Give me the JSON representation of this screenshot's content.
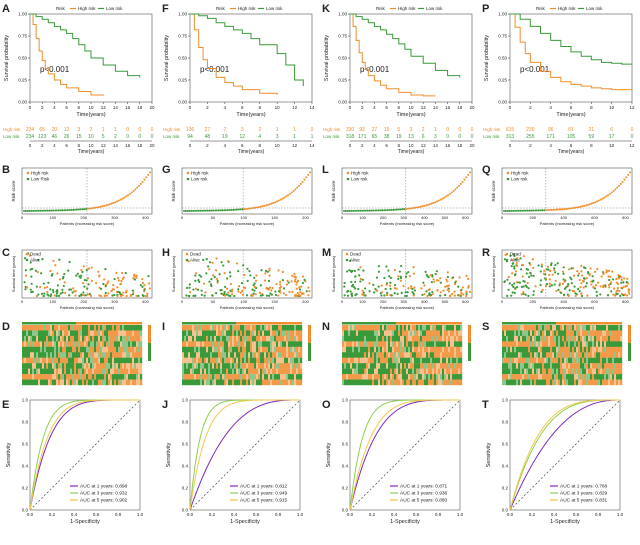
{
  "colors": {
    "high": "#f28e2b",
    "low": "#3a9a3a",
    "dead": "#f28e2b",
    "alive": "#3a9a3a",
    "auc1": "#7b2cbf",
    "auc3": "#8fd14f",
    "auc5": "#f2c94c"
  },
  "columns": [
    {
      "letters": [
        "A",
        "B",
        "C",
        "D",
        "E"
      ],
      "km": {
        "title_legend": [
          "Risk",
          "High risk",
          "Low risk"
        ],
        "pvalue": "p<0.001",
        "ylabel": "Survival probability",
        "xlabel": "Time(years)",
        "xticks": [
          "0",
          "2",
          "4",
          "6",
          "8",
          "10",
          "12",
          "14",
          "16",
          "18",
          "20"
        ],
        "xmax": 20,
        "yticks": [
          "0.00",
          "0.25",
          "0.50",
          "0.75",
          "1.00"
        ],
        "high": {
          "t": [
            0,
            0.5,
            1,
            1.5,
            2,
            2.5,
            3,
            4,
            5,
            6,
            8,
            10,
            12
          ],
          "s": [
            1,
            0.88,
            0.72,
            0.58,
            0.47,
            0.38,
            0.32,
            0.25,
            0.2,
            0.16,
            0.12,
            0.08,
            0.07
          ]
        },
        "low": {
          "t": [
            0,
            1,
            2,
            3,
            4,
            5,
            6,
            7,
            8,
            9,
            10,
            12,
            14,
            16,
            18
          ],
          "s": [
            1,
            0.97,
            0.94,
            0.9,
            0.86,
            0.82,
            0.78,
            0.72,
            0.65,
            0.58,
            0.5,
            0.42,
            0.35,
            0.3,
            0.28
          ]
        }
      },
      "table": {
        "row_labels": [
          "High risk",
          "Low risk"
        ],
        "xlabel": "Time(years)",
        "high": [
          "234",
          "65",
          "20",
          "12",
          "3",
          "2",
          "1",
          "1",
          "0",
          "0",
          "0"
        ],
        "low": [
          "234",
          "123",
          "46",
          "26",
          "15",
          "10",
          "5",
          "2",
          "0",
          "0",
          "0"
        ]
      },
      "risk": {
        "ylabel": "Risk score",
        "xlabel": "Patients (increasing risk score)",
        "legend": [
          "High risk",
          "Low Risk"
        ],
        "xticks": [
          "0",
          "100",
          "200",
          "300",
          "400"
        ],
        "n": 468,
        "cut": 234
      },
      "surv": {
        "ylabel": "Survival time (years)",
        "xlabel": "Patients (increasing risk score)",
        "legend": [
          "Dead",
          "Alive"
        ],
        "xticks": [
          "0",
          "100",
          "200",
          "300",
          "400"
        ],
        "n": 468
      },
      "roc": {
        "ylabel": "Sensitivity",
        "xlabel": "1-Specificity",
        "labels": [
          "AUC at 1 years: 0.898",
          "AUC at 3 years: 0.932",
          "AUC at 5 years: 0.902"
        ]
      }
    },
    {
      "letters": [
        "F",
        "G",
        "H",
        "I",
        "J"
      ],
      "km": {
        "title_legend": [
          "Risk",
          "High risk",
          "Low risk"
        ],
        "pvalue": "p<0.001",
        "ylabel": "Survival probability",
        "xlabel": "Time(years)",
        "xticks": [
          "0",
          "2",
          "4",
          "6",
          "8",
          "10",
          "12",
          "14"
        ],
        "xmax": 14,
        "yticks": [
          "0.00",
          "0.25",
          "0.50",
          "0.75",
          "1.00"
        ],
        "high": {
          "t": [
            0,
            0.5,
            1,
            1.5,
            2,
            3,
            4,
            5,
            6,
            8,
            10
          ],
          "s": [
            1,
            0.82,
            0.62,
            0.48,
            0.38,
            0.28,
            0.22,
            0.18,
            0.14,
            0.1,
            0.08
          ]
        },
        "low": {
          "t": [
            0,
            1,
            2,
            3,
            4,
            5,
            6,
            7,
            8,
            10,
            11,
            12,
            13
          ],
          "s": [
            1,
            0.98,
            0.95,
            0.9,
            0.86,
            0.82,
            0.78,
            0.72,
            0.65,
            0.55,
            0.42,
            0.25,
            0.18
          ]
        }
      },
      "table": {
        "row_labels": [
          "High risk",
          "Low risk"
        ],
        "xlabel": "Time(years)",
        "high": [
          "106",
          "27",
          "7",
          "3",
          "2",
          "1",
          "1",
          "0"
        ],
        "low": [
          "94",
          "48",
          "19",
          "12",
          "4",
          "3",
          "1",
          "1"
        ]
      },
      "risk": {
        "ylabel": "Risk score",
        "xlabel": "Patients (increasing risk score)",
        "legend": [
          "High risk",
          "Low risk"
        ],
        "xticks": [
          "0",
          "50",
          "100",
          "150",
          "200"
        ],
        "n": 200,
        "cut": 94
      },
      "surv": {
        "ylabel": "Survival time (years)",
        "xlabel": "Patients (increasing risk score)",
        "legend": [
          "Dead",
          "Alive"
        ],
        "xticks": [
          "0",
          "50",
          "100",
          "150",
          "200"
        ],
        "n": 200
      },
      "roc": {
        "ylabel": "Sensitivity",
        "xlabel": "1-Specificity",
        "labels": [
          "AUC at 1 years: 0.812",
          "AUC at 3 years: 0.949",
          "AUC at 5 years: 0.915"
        ]
      }
    },
    {
      "letters": [
        "K",
        "L",
        "M",
        "N",
        "O"
      ],
      "km": {
        "title_legend": [
          "Risk",
          "High risk",
          "Low risk"
        ],
        "pvalue": "p<0.001",
        "ylabel": "Survival probability",
        "xlabel": "Time(years)",
        "xticks": [
          "0",
          "2",
          "4",
          "6",
          "8",
          "10",
          "12",
          "14",
          "16",
          "18",
          "20"
        ],
        "xmax": 20,
        "yticks": [
          "0.00",
          "0.25",
          "0.50",
          "0.75",
          "1.00"
        ],
        "high": {
          "t": [
            0,
            0.5,
            1,
            1.5,
            2,
            2.5,
            3,
            4,
            5,
            6,
            8,
            10,
            12,
            14
          ],
          "s": [
            1,
            0.86,
            0.7,
            0.56,
            0.45,
            0.37,
            0.3,
            0.24,
            0.19,
            0.15,
            0.11,
            0.08,
            0.07,
            0.07
          ]
        },
        "low": {
          "t": [
            0,
            1,
            2,
            3,
            4,
            5,
            6,
            7,
            8,
            9,
            10,
            12,
            14,
            16,
            18
          ],
          "s": [
            1,
            0.97,
            0.94,
            0.9,
            0.86,
            0.82,
            0.77,
            0.72,
            0.66,
            0.6,
            0.52,
            0.44,
            0.36,
            0.3,
            0.28
          ]
        }
      },
      "table": {
        "row_labels": [
          "High risk",
          "Low risk"
        ],
        "xlabel": "Time(years)",
        "high": [
          "330",
          "92",
          "27",
          "15",
          "5",
          "3",
          "2",
          "1",
          "0",
          "0",
          "0"
        ],
        "low": [
          "318",
          "171",
          "65",
          "38",
          "19",
          "13",
          "6",
          "3",
          "0",
          "0",
          "0"
        ]
      },
      "risk": {
        "ylabel": "Risk score",
        "xlabel": "Patients (increasing risk score)",
        "legend": [
          "High risk",
          "Low risk"
        ],
        "xticks": [
          "0",
          "100",
          "200",
          "300",
          "400",
          "500",
          "600"
        ],
        "n": 648,
        "cut": 318
      },
      "surv": {
        "ylabel": "Survival time (years)",
        "xlabel": "Patients (increasing risk score)",
        "legend": [
          "Dead",
          "Alive"
        ],
        "xticks": [
          "0",
          "100",
          "200",
          "300",
          "400",
          "500",
          "600"
        ],
        "n": 648
      },
      "roc": {
        "ylabel": "Sensitivity",
        "xlabel": "1-Specificity",
        "labels": [
          "AUC at 1 years: 0.871",
          "AUC at 3 years: 0.936",
          "AUC at 5 years: 0.880"
        ]
      }
    },
    {
      "letters": [
        "P",
        "Q",
        "R",
        "S",
        "T"
      ],
      "km": {
        "title_legend": [
          "Risk",
          "High risk",
          "Low risk"
        ],
        "pvalue": "p<0.001",
        "ylabel": "Survival probability",
        "xlabel": "Time(years)",
        "xticks": [
          "0",
          "2",
          "4",
          "6",
          "8",
          "10",
          "12"
        ],
        "xmax": 12,
        "yticks": [
          "0.00",
          "0.25",
          "0.50",
          "0.75",
          "1.00"
        ],
        "high": {
          "t": [
            0,
            0.5,
            1,
            1.5,
            2,
            3,
            4,
            5,
            6,
            7,
            8,
            9,
            10,
            11,
            12
          ],
          "s": [
            1,
            0.85,
            0.68,
            0.55,
            0.45,
            0.35,
            0.28,
            0.23,
            0.2,
            0.18,
            0.16,
            0.15,
            0.14,
            0.14,
            0.14
          ]
        },
        "low": {
          "t": [
            0,
            1,
            2,
            3,
            4,
            5,
            6,
            7,
            8,
            9,
            10,
            11,
            12
          ],
          "s": [
            1,
            0.94,
            0.86,
            0.78,
            0.7,
            0.63,
            0.57,
            0.52,
            0.48,
            0.45,
            0.44,
            0.43,
            0.43
          ]
        }
      },
      "table": {
        "row_labels": [
          "High risk",
          "Low risk"
        ],
        "xlabel": "Time(years)",
        "high": [
          "615",
          "230",
          "96",
          "61",
          "21",
          "6",
          "0"
        ],
        "low": [
          "313",
          "255",
          "171",
          "105",
          "59",
          "17",
          "0"
        ]
      },
      "risk": {
        "ylabel": "Risk score",
        "xlabel": "Patients (increasing risk score)",
        "legend": [
          "High risk",
          "Low risk"
        ],
        "xticks": [
          "0",
          "200",
          "400",
          "600",
          "800"
        ],
        "n": 928,
        "cut": 313
      },
      "surv": {
        "ylabel": "Survival time (years)",
        "xlabel": "Patients (increasing risk score)",
        "legend": [
          "Dead",
          "Alive"
        ],
        "xticks": [
          "0",
          "200",
          "400",
          "600",
          "800"
        ],
        "n": 928
      },
      "roc": {
        "ylabel": "Sensitivity",
        "xlabel": "1-Specificity",
        "labels": [
          "AUC at 1 years: 0.768",
          "AUC at 3 years: 0.829",
          "AUC at 5 years: 0.831"
        ]
      }
    }
  ]
}
